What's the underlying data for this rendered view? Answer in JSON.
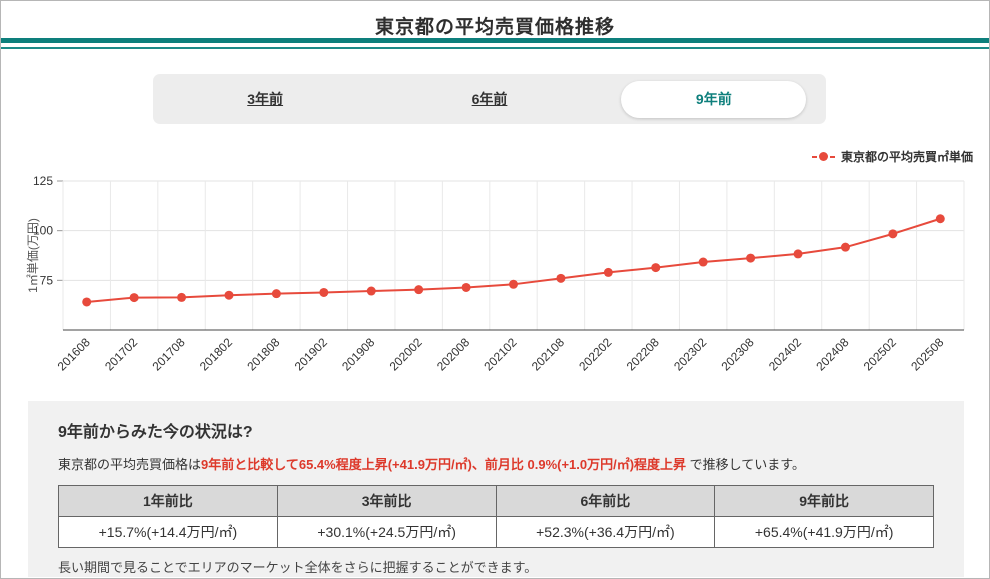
{
  "page": {
    "title": "東京都の平均売買価格推移"
  },
  "tabs": [
    {
      "label": "3年前",
      "active": false
    },
    {
      "label": "6年前",
      "active": false
    },
    {
      "label": "9年前",
      "active": true
    }
  ],
  "legend": {
    "label": "東京都の平均売買㎡単価"
  },
  "chart_data": {
    "type": "line",
    "x": [
      "201608",
      "201702",
      "201708",
      "201802",
      "201808",
      "201902",
      "201908",
      "202002",
      "202008",
      "202102",
      "202108",
      "202202",
      "202208",
      "202302",
      "202308",
      "202402",
      "202408",
      "202502",
      "202508"
    ],
    "series": [
      {
        "name": "東京都の平均売買㎡単価",
        "values": [
          64.1,
          66.3,
          66.4,
          67.5,
          68.3,
          68.9,
          69.6,
          70.3,
          71.4,
          73.0,
          76.0,
          79.0,
          81.4,
          84.2,
          86.2,
          88.3,
          91.7,
          98.4,
          106.0
        ],
        "color": "#e74a3c"
      }
    ],
    "title": "",
    "xlabel": "",
    "ylabel": "1㎡単価(万円)",
    "ylim": [
      50,
      125
    ],
    "yticks": [
      75,
      100,
      125
    ],
    "grid": true,
    "legend_position": "top-right"
  },
  "summary": {
    "heading": "9年前からみた今の状況は?",
    "lead": "東京都の平均売買価格は",
    "highlight": "9年前と比較して65.4%程度上昇(+41.9万円/㎡)、前月比 0.9%(+1.0万円/㎡)程度上昇",
    "tail": " で推移しています。",
    "table": {
      "headers": [
        "1年前比",
        "3年前比",
        "6年前比",
        "9年前比"
      ],
      "values": [
        "+15.7%(+14.4万円/㎡)",
        "+30.1%(+24.5万円/㎡)",
        "+52.3%(+36.4万円/㎡)",
        "+65.4%(+41.9万円/㎡)"
      ]
    },
    "note": "長い期間で見ることでエリアのマーケット全体をさらに把握することができます。"
  },
  "colors": {
    "accent_teal": "#0e7f7c",
    "line_red": "#e74a3c",
    "highlight_red": "#dd392b",
    "panel_gray": "#f1f1f1",
    "table_header_gray": "#d9d9d9"
  }
}
